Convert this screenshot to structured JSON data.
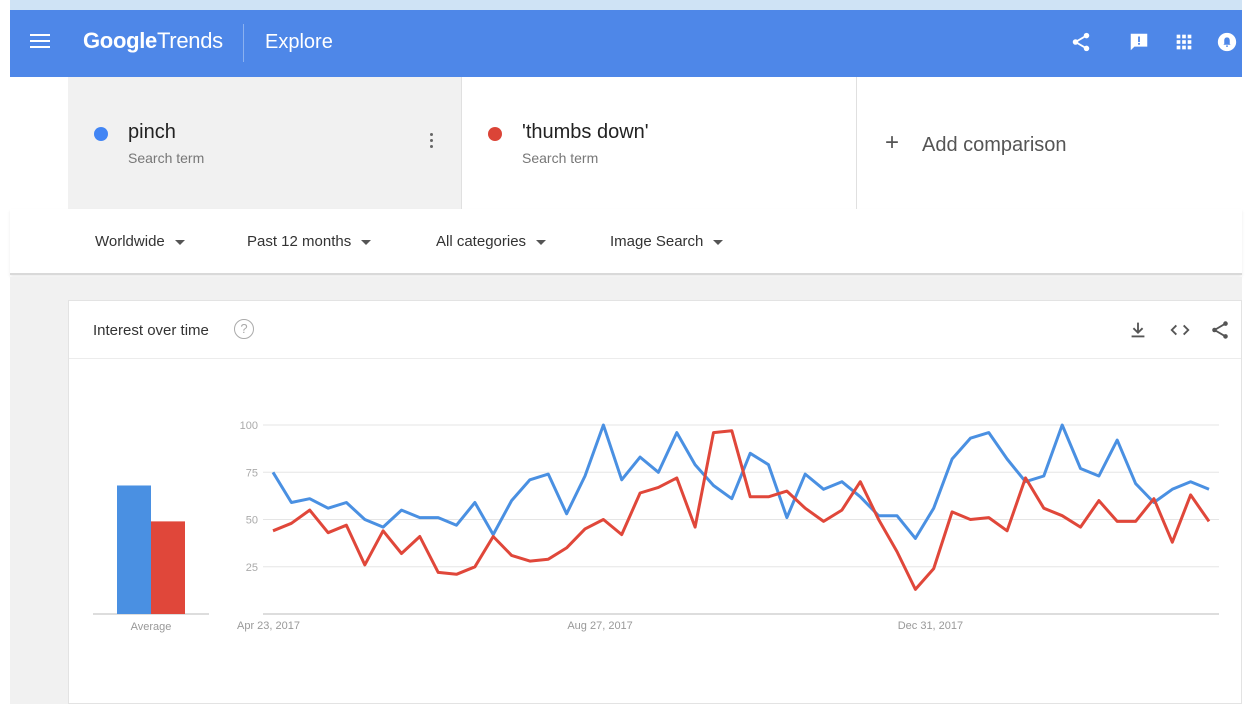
{
  "header": {
    "logo_google": "Google",
    "logo_trends": "Trends",
    "page": "Explore",
    "icons": [
      "menu-icon",
      "share-icon",
      "feedback-icon",
      "apps-icon",
      "notifications-icon"
    ]
  },
  "terms": [
    {
      "name": "pinch",
      "sub": "Search term",
      "color": "#4285f4"
    },
    {
      "name": "'thumbs down'",
      "sub": "Search term",
      "color": "#db4437"
    }
  ],
  "add_comparison": {
    "plus": "+",
    "label": "Add comparison"
  },
  "filters": {
    "region": "Worldwide",
    "time": "Past 12 months",
    "category": "All categories",
    "search_type": "Image Search"
  },
  "card": {
    "title": "Interest over time",
    "help": "?"
  },
  "chart_data": {
    "type": "line",
    "ylim": [
      0,
      100
    ],
    "yticks": [
      25,
      50,
      75,
      100
    ],
    "x_labels": [
      "Apr 23, 2017",
      "Aug 27, 2017",
      "Dec 31, 2017"
    ],
    "x_label_week_index": [
      0,
      18,
      36
    ],
    "average_label": "Average",
    "average": [
      68,
      49
    ],
    "series": [
      {
        "name": "pinch",
        "color": "#4a90e2",
        "values": [
          75,
          59,
          61,
          56,
          59,
          50,
          46,
          55,
          51,
          51,
          47,
          59,
          42,
          60,
          71,
          74,
          53,
          73,
          100,
          71,
          83,
          75,
          96,
          79,
          68,
          61,
          85,
          79,
          51,
          74,
          66,
          70,
          62,
          52,
          52,
          40,
          56,
          82,
          93,
          96,
          82,
          70,
          73,
          100,
          77,
          73,
          92,
          69,
          59,
          66,
          70,
          66
        ]
      },
      {
        "name": "'thumbs down'",
        "color": "#e0473a",
        "values": [
          44,
          48,
          55,
          43,
          47,
          26,
          44,
          32,
          41,
          22,
          21,
          25,
          41,
          31,
          28,
          29,
          35,
          45,
          50,
          42,
          64,
          67,
          72,
          46,
          96,
          97,
          62,
          62,
          65,
          56,
          49,
          55,
          70,
          50,
          33,
          13,
          24,
          54,
          50,
          51,
          44,
          72,
          56,
          52,
          46,
          60,
          49,
          49,
          61,
          38,
          63,
          49
        ]
      }
    ]
  }
}
